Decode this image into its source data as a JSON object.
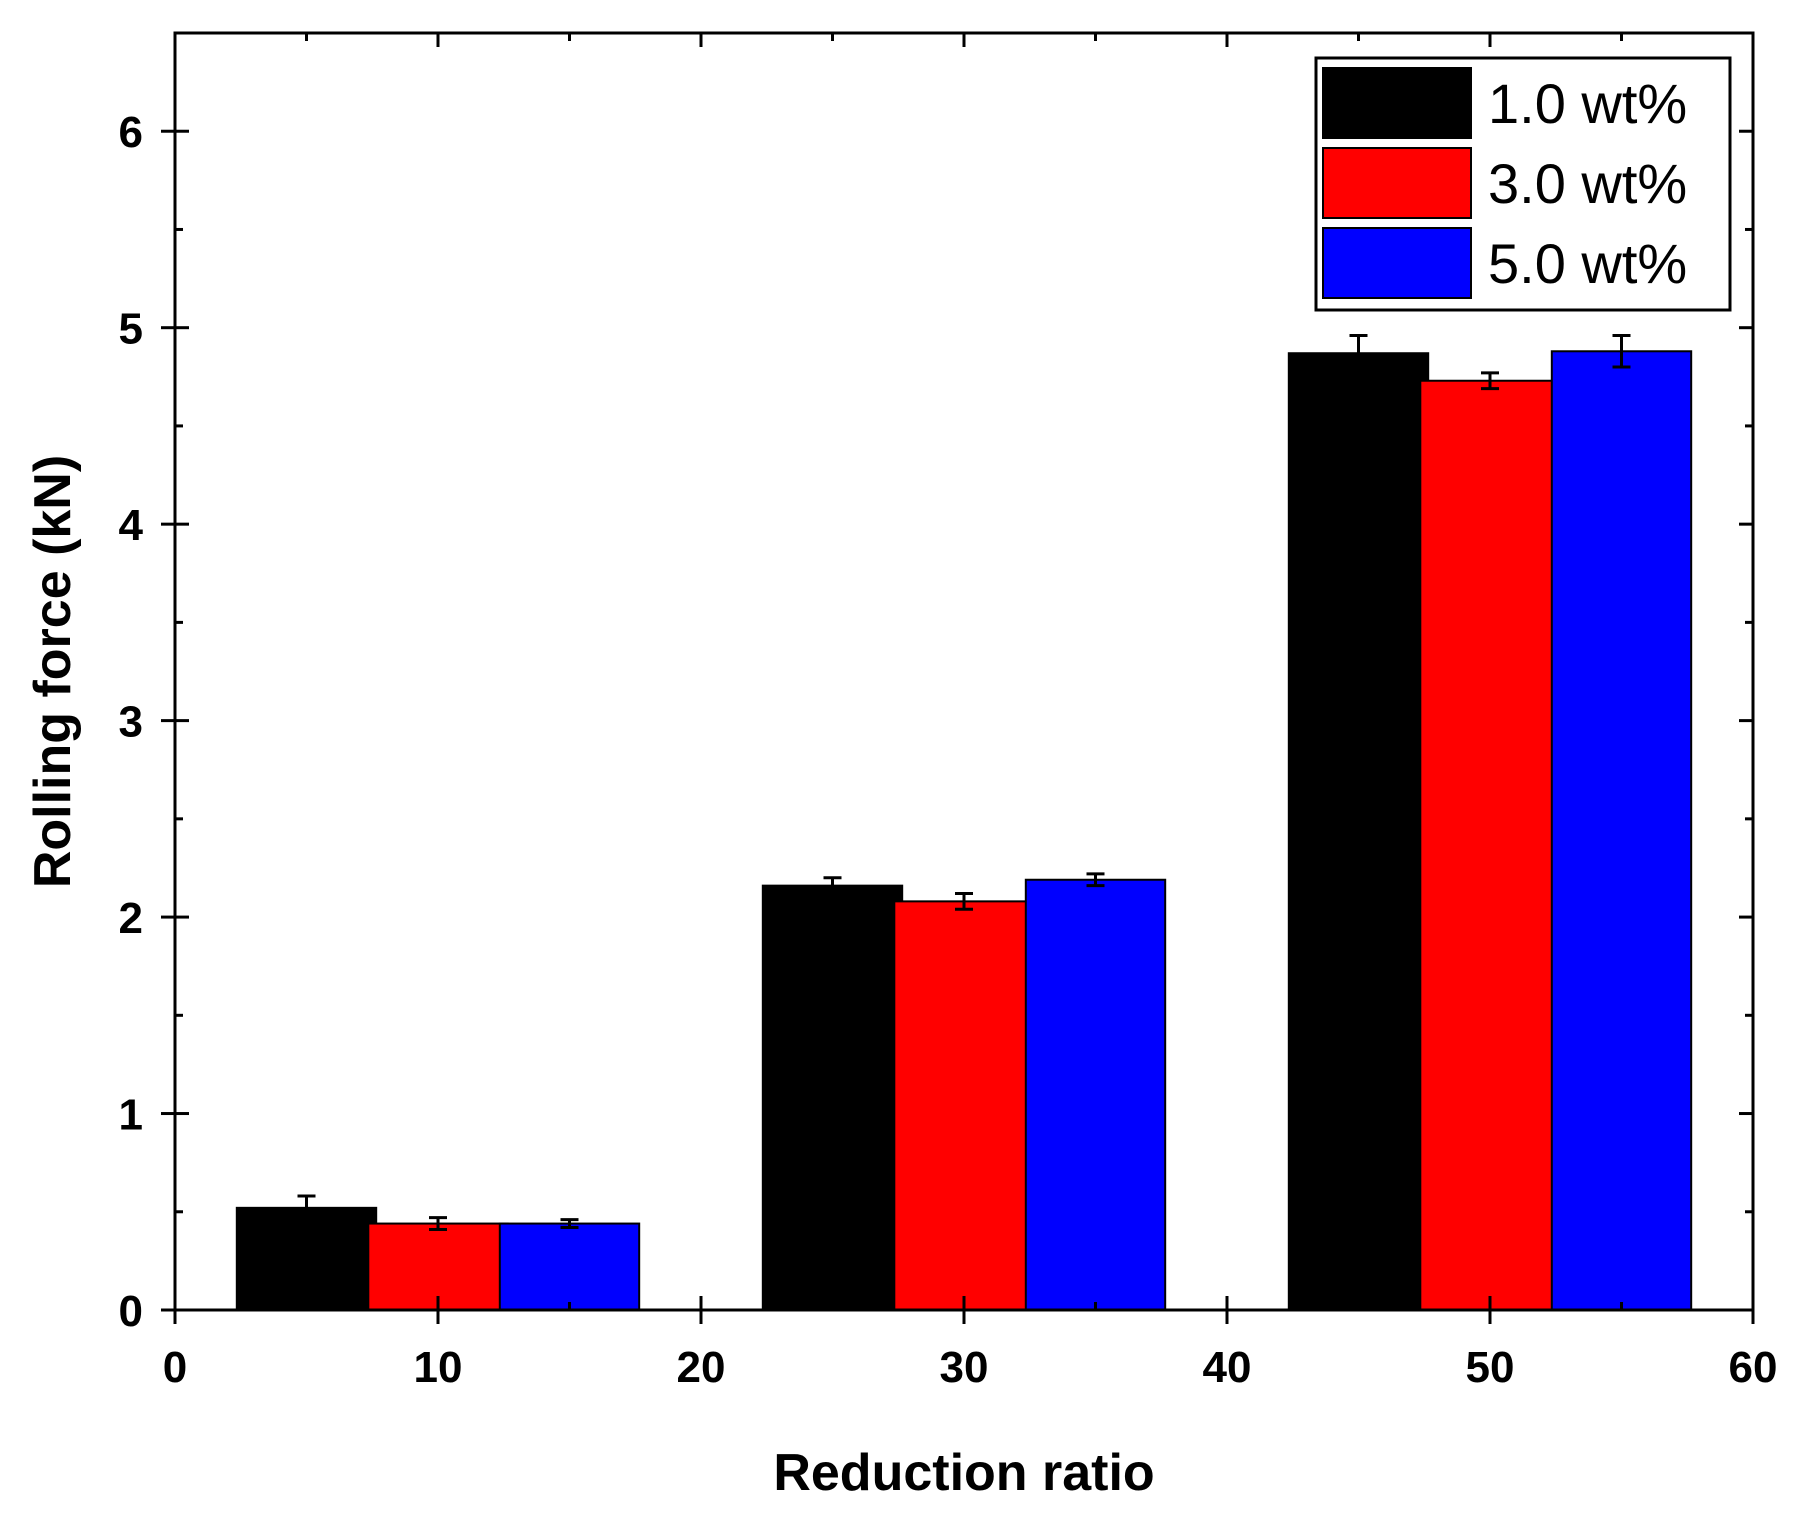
{
  "chart_data": {
    "type": "bar",
    "title": "",
    "xlabel": "Reduction ratio",
    "ylabel": "Rolling force (kN)",
    "xlim": [
      0,
      60
    ],
    "ylim": [
      0,
      6.5
    ],
    "x_ticks": [
      "0",
      "10",
      "20",
      "30",
      "40",
      "50",
      "60"
    ],
    "y_ticks": [
      "0",
      "1",
      "2",
      "3",
      "4",
      "5",
      "6"
    ],
    "categories": [
      10,
      30,
      50
    ],
    "legend_position": "top-right",
    "grid": false,
    "series": [
      {
        "name": "1.0 wt%",
        "color": "#000000",
        "x": [
          5,
          25,
          45
        ],
        "values": [
          0.52,
          2.16,
          4.87
        ],
        "errors": [
          0.06,
          0.04,
          0.09
        ]
      },
      {
        "name": "3.0 wt%",
        "color": "#ff0000",
        "x": [
          10,
          30,
          50
        ],
        "values": [
          0.44,
          2.08,
          4.73
        ],
        "errors": [
          0.03,
          0.04,
          0.04
        ]
      },
      {
        "name": "5.0 wt%",
        "color": "#0000ff",
        "x": [
          15,
          35,
          55
        ],
        "values": [
          0.44,
          2.19,
          4.88
        ],
        "errors": [
          0.02,
          0.03,
          0.08
        ]
      }
    ]
  }
}
